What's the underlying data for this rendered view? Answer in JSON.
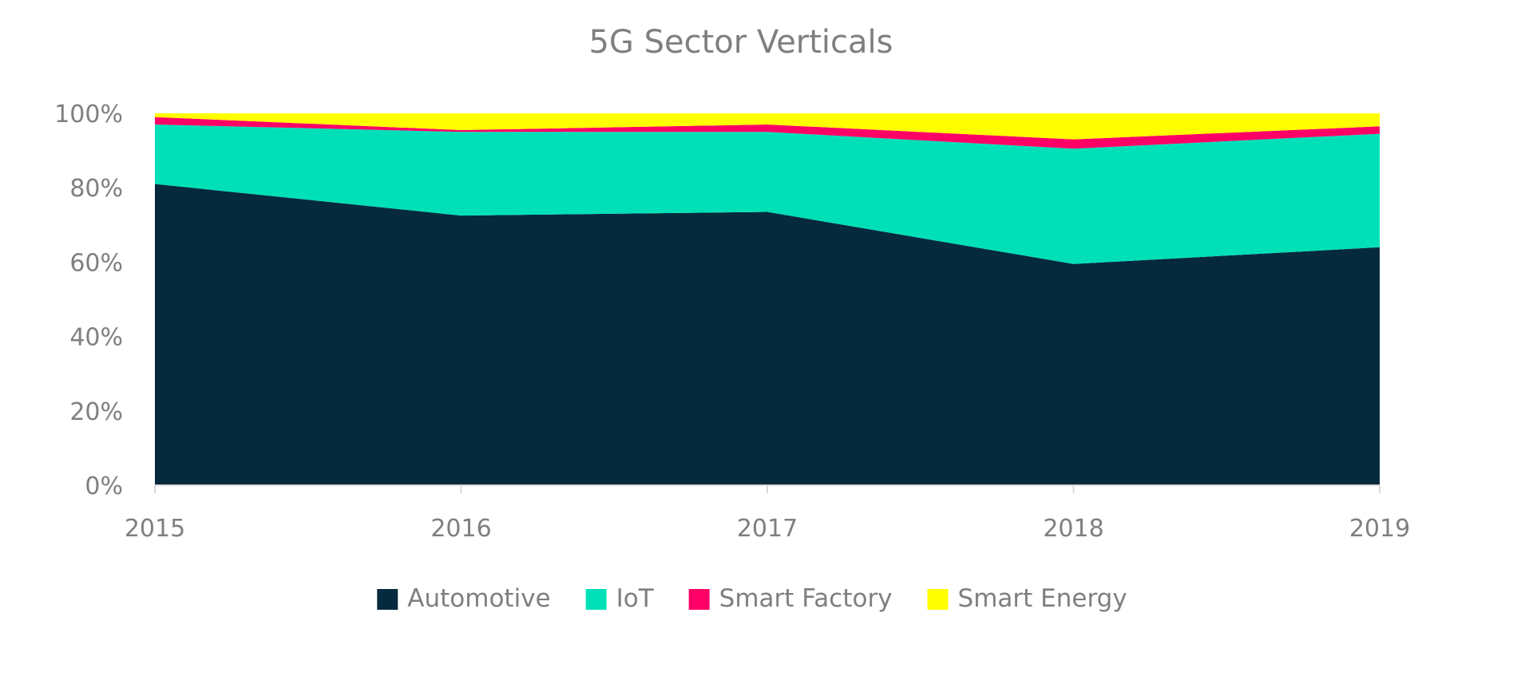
{
  "chart_data": {
    "type": "area",
    "stacked": true,
    "percent": true,
    "title": "5G Sector Verticals",
    "x": [
      "2015",
      "2016",
      "2017",
      "2018",
      "2019"
    ],
    "y_ticks": [
      "0%",
      "20%",
      "40%",
      "60%",
      "80%",
      "100%"
    ],
    "ylim": [
      0,
      100
    ],
    "grid": false,
    "legend_position": "bottom",
    "series": [
      {
        "name": "Automotive",
        "color": "#062a3d",
        "values": [
          81,
          72.5,
          73.5,
          59.5,
          64
        ]
      },
      {
        "name": "IoT",
        "color": "#00e0b8",
        "values": [
          16,
          22.5,
          21.5,
          31,
          30.5
        ]
      },
      {
        "name": "Smart Factory",
        "color": "#ff0066",
        "values": [
          2,
          0.5,
          2,
          2.5,
          2
        ]
      },
      {
        "name": "Smart Energy",
        "color": "#ffff00",
        "values": [
          1,
          4.5,
          3,
          7,
          3.5
        ]
      }
    ]
  }
}
